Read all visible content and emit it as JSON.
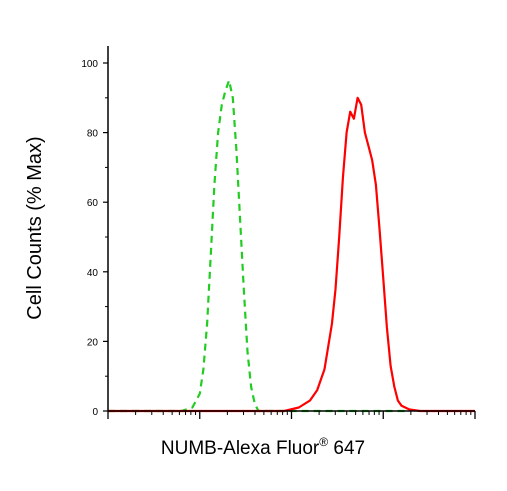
{
  "chart_data": {
    "type": "line",
    "title": "",
    "xlabel": "NUMB-Alexa Fluor",
    "xlabel_superscript": "®",
    "xlabel_suffix": " 647",
    "ylabel": "Cell Counts (% Max)",
    "x_scale": "log",
    "xlim": [
      0,
      100
    ],
    "ylim": [
      0,
      100
    ],
    "y_ticks": [
      0,
      20,
      40,
      60,
      80,
      100
    ],
    "y_tick_labels": [
      "0",
      "20",
      "40",
      "60",
      "80",
      "100"
    ],
    "x_tick_labels": [],
    "grid": false,
    "legend": false,
    "series": [
      {
        "color": "#22cc22",
        "line_style": "dashed",
        "points": [
          [
            0,
            0
          ],
          [
            20,
            0
          ],
          [
            23,
            1
          ],
          [
            25,
            5
          ],
          [
            26,
            12
          ],
          [
            27,
            25
          ],
          [
            28,
            45
          ],
          [
            29,
            65
          ],
          [
            30,
            80
          ],
          [
            31,
            88
          ],
          [
            32,
            92
          ],
          [
            33,
            95
          ],
          [
            34,
            90
          ],
          [
            35,
            75
          ],
          [
            36,
            55
          ],
          [
            37,
            35
          ],
          [
            38,
            17
          ],
          [
            39,
            7
          ],
          [
            40,
            2
          ],
          [
            41,
            0
          ],
          [
            64,
            0
          ],
          [
            67,
            0
          ],
          [
            79,
            0
          ],
          [
            82,
            0
          ]
        ]
      },
      {
        "color": "#ff0000",
        "line_style": "solid",
        "points": [
          [
            0,
            0
          ],
          [
            42,
            0
          ],
          [
            48,
            0
          ],
          [
            52,
            1
          ],
          [
            55,
            3
          ],
          [
            57,
            6
          ],
          [
            59,
            12
          ],
          [
            61,
            25
          ],
          [
            62,
            35
          ],
          [
            63,
            50
          ],
          [
            64,
            67
          ],
          [
            65,
            80
          ],
          [
            66,
            86
          ],
          [
            67,
            84
          ],
          [
            68,
            90
          ],
          [
            69,
            88
          ],
          [
            70,
            80
          ],
          [
            71,
            76
          ],
          [
            72,
            72
          ],
          [
            73,
            65
          ],
          [
            74,
            52
          ],
          [
            75,
            38
          ],
          [
            76,
            24
          ],
          [
            77,
            13
          ],
          [
            78,
            7
          ],
          [
            79,
            3
          ],
          [
            80,
            1.5
          ],
          [
            82,
            0.5
          ],
          [
            85,
            0
          ],
          [
            100,
            0
          ]
        ]
      }
    ]
  }
}
